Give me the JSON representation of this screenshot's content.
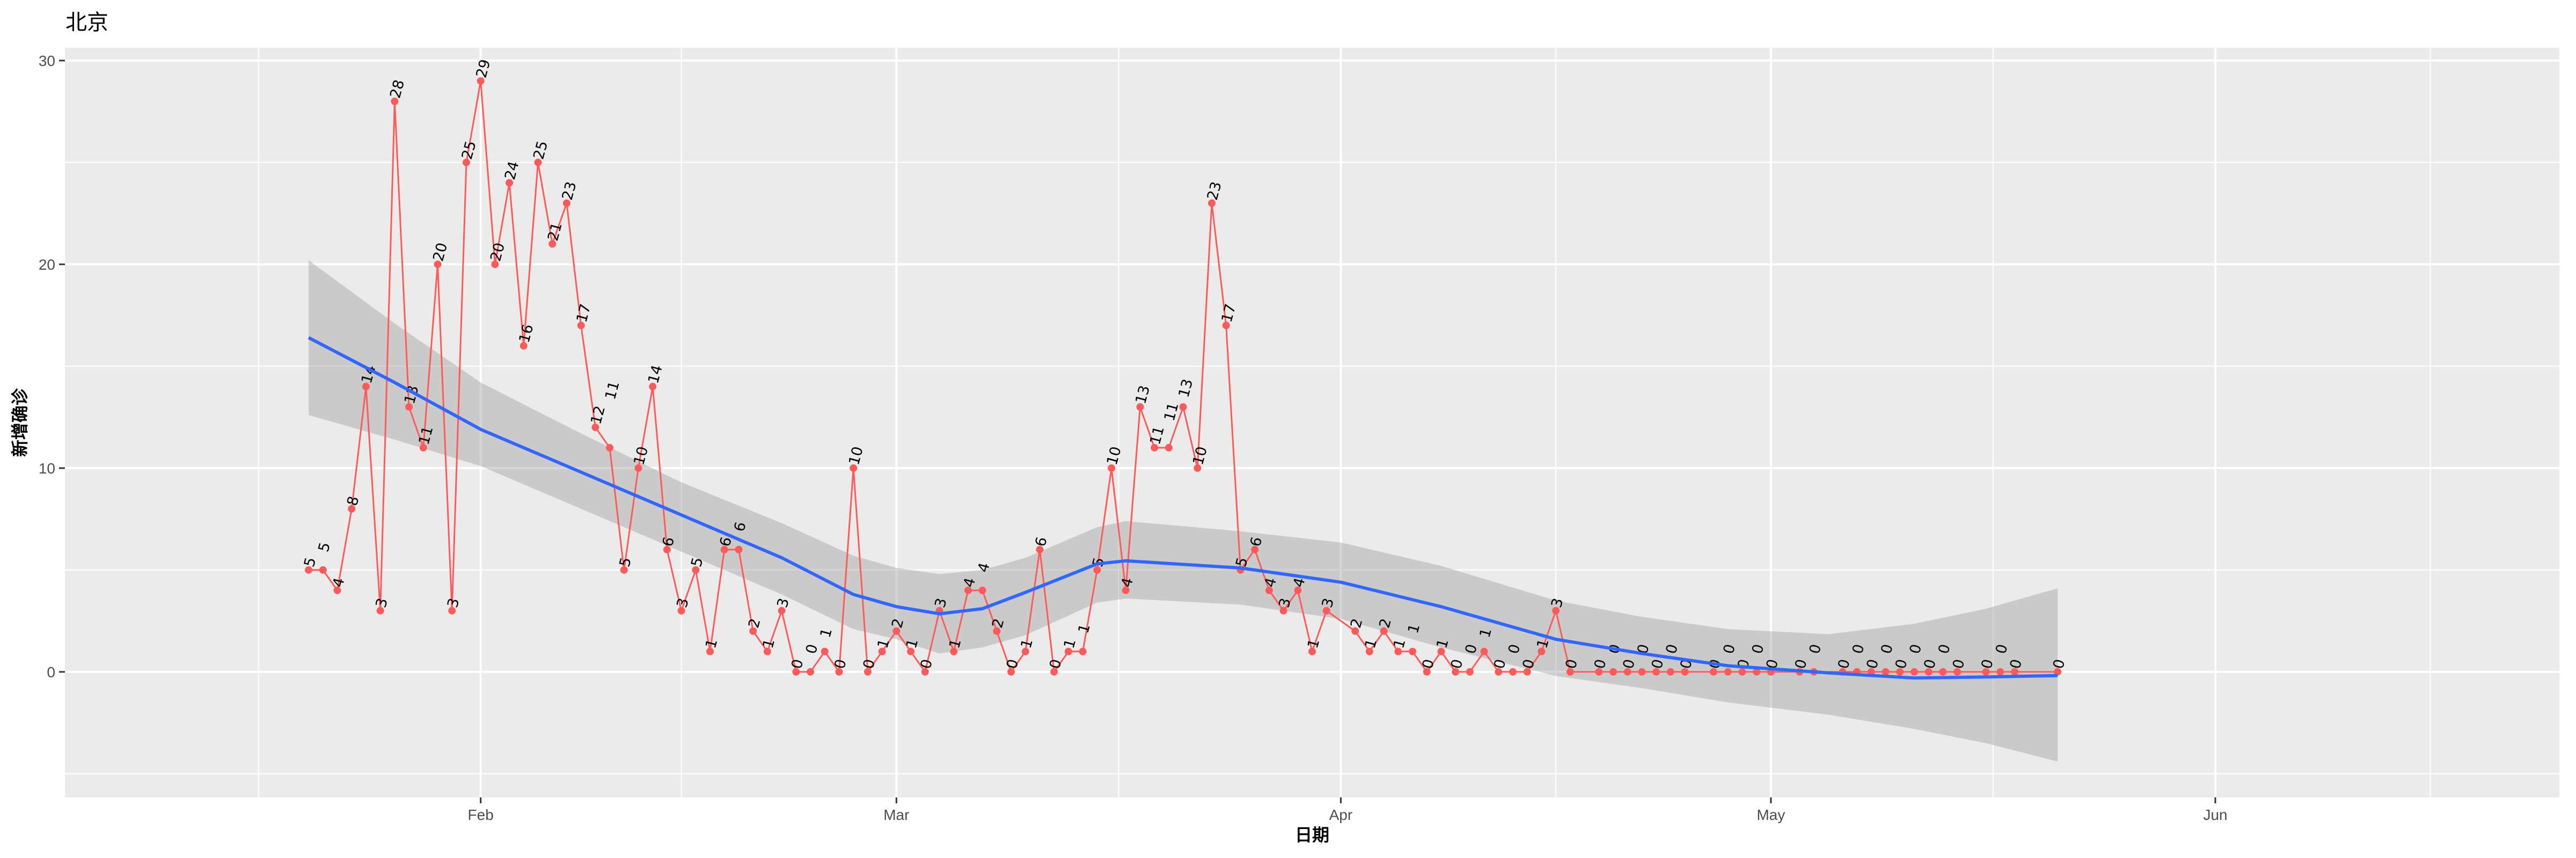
{
  "chart_data": {
    "type": "line",
    "title": "北京",
    "xlabel": "日期",
    "ylabel": "新增确诊",
    "xlim": [
      "2020-01-03",
      "2020-06-25"
    ],
    "ylim": [
      -6.16,
      30.63
    ],
    "x_ticks": [
      {
        "date": "2020-02-01",
        "label": "Feb"
      },
      {
        "date": "2020-03-01",
        "label": "Mar"
      },
      {
        "date": "2020-04-01",
        "label": "Apr"
      },
      {
        "date": "2020-05-01",
        "label": "May"
      },
      {
        "date": "2020-06-01",
        "label": "Jun"
      }
    ],
    "x_minor_ticks": [
      "2020-01-16T12:00",
      "2020-02-15",
      "2020-03-16T12:00",
      "2020-04-16",
      "2020-05-16T12:00",
      "2020-06-16"
    ],
    "y_ticks": [
      0,
      10,
      20,
      30
    ],
    "y_minor_ticks": [
      -5,
      5,
      15,
      25
    ],
    "grid": true,
    "colors": {
      "series": "#ff5a5a",
      "smooth": "#3366ff",
      "band": "#999999",
      "panel": "#ebebeb"
    },
    "series": [
      {
        "points": [
          [
            "2020-01-20",
            5
          ],
          [
            "2020-01-21",
            5
          ],
          [
            "2020-01-22",
            4
          ],
          [
            "2020-01-23",
            8
          ],
          [
            "2020-01-24",
            14
          ],
          [
            "2020-01-25",
            3
          ],
          [
            "2020-01-26",
            28
          ],
          [
            "2020-01-27",
            13
          ],
          [
            "2020-01-28",
            11
          ],
          [
            "2020-01-29",
            20
          ],
          [
            "2020-01-30",
            3
          ],
          [
            "2020-01-31",
            25
          ],
          [
            "2020-02-01",
            29
          ],
          [
            "2020-02-02",
            20
          ],
          [
            "2020-02-03",
            24
          ],
          [
            "2020-02-04",
            16
          ],
          [
            "2020-02-05",
            25
          ],
          [
            "2020-02-06",
            21
          ],
          [
            "2020-02-07",
            23
          ],
          [
            "2020-02-08",
            17
          ],
          [
            "2020-02-09",
            12
          ],
          [
            "2020-02-10",
            11
          ],
          [
            "2020-02-11",
            5
          ],
          [
            "2020-02-12",
            10
          ],
          [
            "2020-02-13",
            14
          ],
          [
            "2020-02-14",
            6
          ],
          [
            "2020-02-15",
            3
          ],
          [
            "2020-02-16",
            5
          ],
          [
            "2020-02-17",
            1
          ],
          [
            "2020-02-18",
            6
          ],
          [
            "2020-02-19",
            6
          ],
          [
            "2020-02-20",
            2
          ],
          [
            "2020-02-21",
            1
          ],
          [
            "2020-02-22",
            3
          ],
          [
            "2020-02-23",
            0
          ],
          [
            "2020-02-24",
            0
          ],
          [
            "2020-02-25",
            1
          ],
          [
            "2020-02-26",
            0
          ],
          [
            "2020-02-27",
            10
          ],
          [
            "2020-02-28",
            0
          ],
          [
            "2020-02-29",
            1
          ],
          [
            "2020-03-01",
            2
          ],
          [
            "2020-03-02",
            1
          ],
          [
            "2020-03-03",
            0
          ],
          [
            "2020-03-04",
            3
          ],
          [
            "2020-03-05",
            1
          ],
          [
            "2020-03-06",
            4
          ],
          [
            "2020-03-07",
            4
          ],
          [
            "2020-03-08",
            2
          ],
          [
            "2020-03-09",
            0
          ],
          [
            "2020-03-10",
            1
          ],
          [
            "2020-03-11",
            6
          ],
          [
            "2020-03-12",
            0
          ],
          [
            "2020-03-13",
            1
          ],
          [
            "2020-03-14",
            1
          ],
          [
            "2020-03-15",
            5
          ],
          [
            "2020-03-16",
            10
          ],
          [
            "2020-03-17",
            4
          ],
          [
            "2020-03-18",
            13
          ],
          [
            "2020-03-19",
            11
          ],
          [
            "2020-03-20",
            11
          ],
          [
            "2020-03-21",
            13
          ],
          [
            "2020-03-22",
            10
          ],
          [
            "2020-03-23",
            23
          ],
          [
            "2020-03-24",
            17
          ],
          [
            "2020-03-25",
            5
          ],
          [
            "2020-03-26",
            6
          ],
          [
            "2020-03-27",
            4
          ],
          [
            "2020-03-28",
            3
          ],
          [
            "2020-03-29",
            4
          ],
          [
            "2020-03-30",
            1
          ],
          [
            "2020-03-31",
            3
          ],
          [
            "2020-04-02",
            2
          ],
          [
            "2020-04-03",
            1
          ],
          [
            "2020-04-04",
            2
          ],
          [
            "2020-04-05",
            1
          ],
          [
            "2020-04-06",
            1
          ],
          [
            "2020-04-07",
            0
          ],
          [
            "2020-04-08",
            1
          ],
          [
            "2020-04-09",
            0
          ],
          [
            "2020-04-10",
            0
          ],
          [
            "2020-04-11",
            1
          ],
          [
            "2020-04-12",
            0
          ],
          [
            "2020-04-13",
            0
          ],
          [
            "2020-04-14",
            0
          ],
          [
            "2020-04-15",
            1
          ],
          [
            "2020-04-16",
            3
          ],
          [
            "2020-04-17",
            0
          ],
          [
            "2020-04-19",
            0
          ],
          [
            "2020-04-20",
            0
          ],
          [
            "2020-04-21",
            0
          ],
          [
            "2020-04-22",
            0
          ],
          [
            "2020-04-23",
            0
          ],
          [
            "2020-04-24",
            0
          ],
          [
            "2020-04-25",
            0
          ],
          [
            "2020-04-27",
            0
          ],
          [
            "2020-04-28",
            0
          ],
          [
            "2020-04-29",
            0
          ],
          [
            "2020-04-30",
            0
          ],
          [
            "2020-05-01",
            0
          ],
          [
            "2020-05-03",
            0
          ],
          [
            "2020-05-04",
            0
          ],
          [
            "2020-05-06",
            0
          ],
          [
            "2020-05-07",
            0
          ],
          [
            "2020-05-08",
            0
          ],
          [
            "2020-05-09",
            0
          ],
          [
            "2020-05-10",
            0
          ],
          [
            "2020-05-11",
            0
          ],
          [
            "2020-05-12",
            0
          ],
          [
            "2020-05-13",
            0
          ],
          [
            "2020-05-14",
            0
          ],
          [
            "2020-05-16",
            0
          ],
          [
            "2020-05-17",
            0
          ],
          [
            "2020-05-18",
            0
          ],
          [
            "2020-05-21",
            0
          ]
        ]
      }
    ],
    "smooth": {
      "method": "loess",
      "points": [
        [
          "2020-01-20",
          16.4,
          12.6,
          20.2
        ],
        [
          "2020-01-26",
          14.2,
          11.4,
          17.1
        ],
        [
          "2020-02-01",
          11.9,
          10.1,
          14.2
        ],
        [
          "2020-02-08",
          9.8,
          8.0,
          11.7
        ],
        [
          "2020-02-15",
          7.7,
          5.9,
          9.3
        ],
        [
          "2020-02-22",
          5.6,
          3.8,
          7.3
        ],
        [
          "2020-02-27",
          3.8,
          2.1,
          5.7
        ],
        [
          "2020-03-01",
          3.2,
          1.6,
          5.1
        ],
        [
          "2020-03-04",
          2.85,
          0.9,
          4.8
        ],
        [
          "2020-03-07",
          3.1,
          1.2,
          5.0
        ],
        [
          "2020-03-10",
          3.9,
          1.8,
          5.6
        ],
        [
          "2020-03-15",
          5.3,
          3.4,
          7.1
        ],
        [
          "2020-03-17",
          5.45,
          3.6,
          7.4
        ],
        [
          "2020-03-25",
          5.1,
          3.3,
          6.9
        ],
        [
          "2020-04-01",
          4.4,
          2.6,
          6.35
        ],
        [
          "2020-04-08",
          3.2,
          1.2,
          5.2
        ],
        [
          "2020-04-16",
          1.6,
          -0.2,
          3.5
        ],
        [
          "2020-04-22",
          0.9,
          -0.8,
          2.7
        ],
        [
          "2020-04-28",
          0.3,
          -1.5,
          2.1
        ],
        [
          "2020-05-05",
          -0.05,
          -2.1,
          1.85
        ],
        [
          "2020-05-11",
          -0.3,
          -2.8,
          2.36
        ],
        [
          "2020-05-16",
          -0.25,
          -3.5,
          3.1
        ],
        [
          "2020-05-21",
          -0.18,
          -4.4,
          4.1
        ]
      ]
    }
  }
}
